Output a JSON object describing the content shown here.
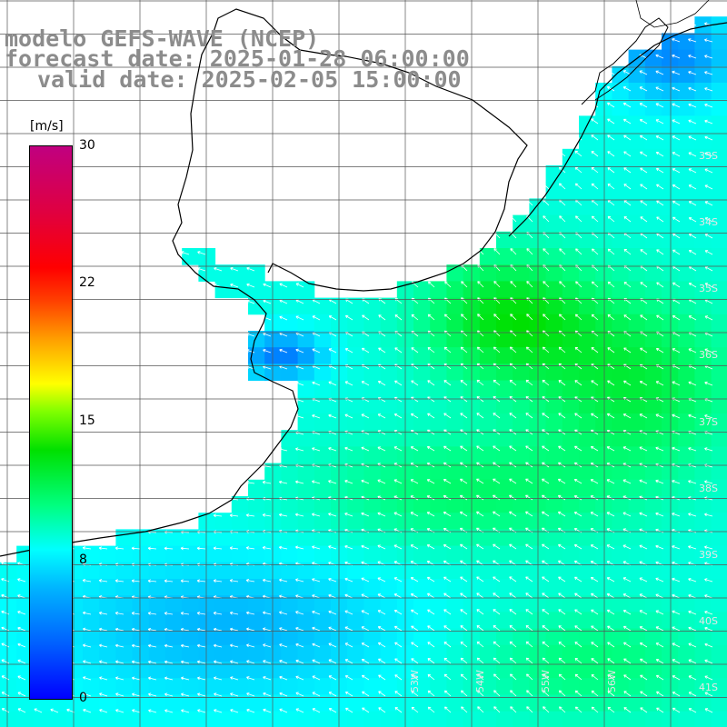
{
  "title": {
    "model": "modelo GEFS-WAVE (NCEP)",
    "forecast": "forecast date: 2025-01-28 06:00:00",
    "valid": "valid date: 2025-02-05 15:00:00"
  },
  "colorbar": {
    "unit": "[m/s]",
    "ticks": [
      "30",
      "22",
      "15",
      "8",
      "0"
    ],
    "tick_values": [
      30,
      22,
      15,
      8,
      0
    ],
    "range": [
      0,
      30
    ]
  },
  "lat_labels": [
    "33S",
    "34S",
    "35S",
    "36S",
    "37S",
    "38S",
    "39S",
    "40S",
    "41S"
  ],
  "lon_labels": [
    "53W",
    "54W",
    "55W",
    "56W"
  ],
  "colors": {
    "title": "#8c8c8c",
    "grid": "#555555",
    "coast": "#000000",
    "land": "#ffffff",
    "arrows": "#ffffff"
  },
  "map": {
    "variable": "wind speed",
    "grid": true,
    "arrow_direction": "northwest"
  }
}
